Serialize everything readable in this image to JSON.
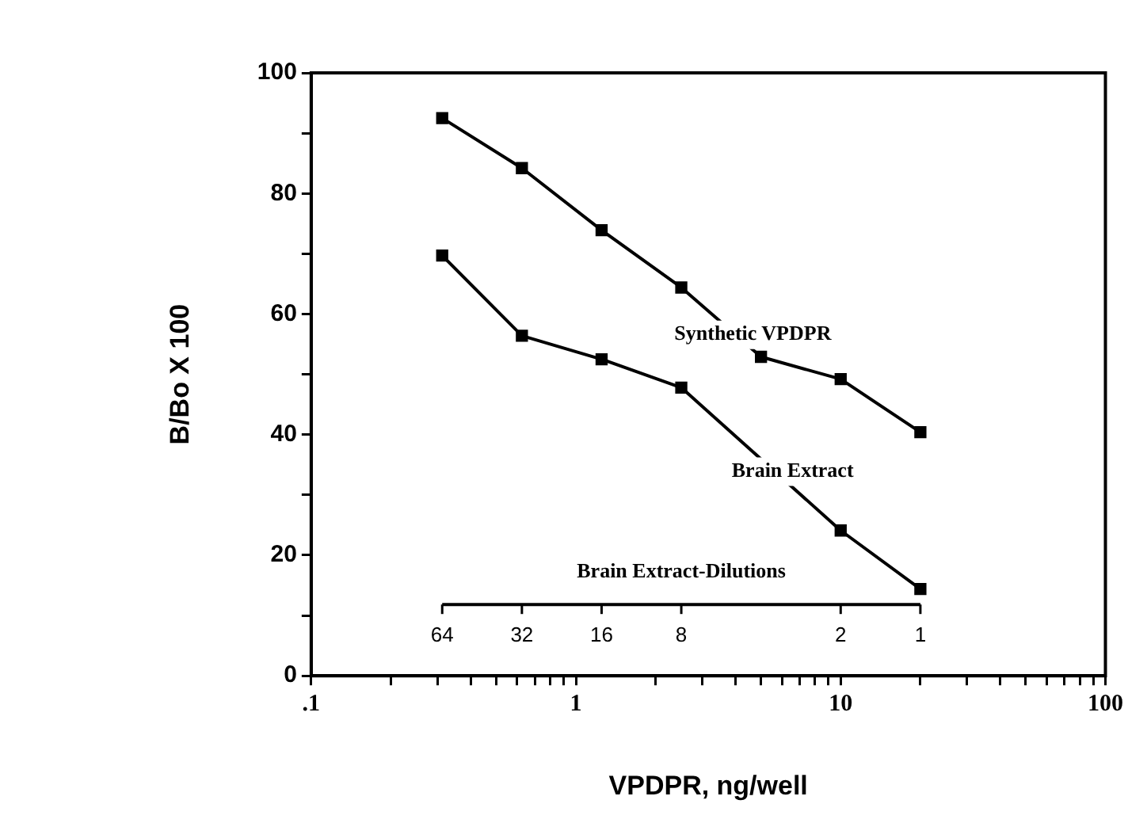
{
  "chart_data": {
    "type": "line",
    "xlabel": "VPDPR, ng/well",
    "ylabel": "B/Bo X 100",
    "log": "x",
    "grid": false,
    "legend": false,
    "marker": "square",
    "line_style": "solid",
    "xlim": [
      0.1,
      100
    ],
    "xticks": [
      {
        "value": 0.1,
        "label": ".1"
      },
      {
        "value": 0.2,
        "label": null
      },
      {
        "value": 0.3,
        "label": null
      },
      {
        "value": 0.4,
        "label": null
      },
      {
        "value": 0.5,
        "label": null
      },
      {
        "value": 0.6,
        "label": null
      },
      {
        "value": 0.7,
        "label": null
      },
      {
        "value": 0.8,
        "label": null
      },
      {
        "value": 0.9,
        "label": null
      },
      1,
      {
        "value": 2,
        "label": null
      },
      {
        "value": 3,
        "label": null
      },
      {
        "value": 4,
        "label": null
      },
      {
        "value": 5,
        "label": null
      },
      {
        "value": 6,
        "label": null
      },
      {
        "value": 7,
        "label": null
      },
      {
        "value": 8,
        "label": null
      },
      {
        "value": 9,
        "label": null
      },
      10,
      {
        "value": 20,
        "label": null
      },
      {
        "value": 30,
        "label": null
      },
      {
        "value": 40,
        "label": null
      },
      {
        "value": 50,
        "label": null
      },
      {
        "value": 60,
        "label": null
      },
      {
        "value": 70,
        "label": null
      },
      {
        "value": 80,
        "label": null
      },
      {
        "value": 90,
        "label": null
      },
      100
    ],
    "ylim": [
      0,
      100
    ],
    "yticks": [
      0,
      {
        "value": 10,
        "label": null
      },
      20,
      {
        "value": 30,
        "label": null
      },
      40,
      {
        "value": 50,
        "label": null
      },
      60,
      {
        "value": 70,
        "label": null
      },
      80,
      {
        "value": 90,
        "label": null
      },
      100
    ],
    "annotations": [
      "Brain Extract-Dilutions",
      "64",
      "32",
      "16",
      "8",
      "2",
      "1"
    ],
    "x": [
      0.3125,
      0.625,
      1.25,
      2.5,
      5,
      10,
      20
    ],
    "series": [
      {
        "name": "Synthetic VPDPR",
        "color": "#000000",
        "values": [
          92.5,
          84.2,
          73.9,
          64.4,
          52.9,
          49.2,
          40.4
        ]
      },
      {
        "name": "Brain Extract",
        "color": "#000000",
        "values": [
          69.7,
          56.4,
          52.5,
          47.8,
          null,
          24.1,
          14.4
        ]
      }
    ]
  }
}
